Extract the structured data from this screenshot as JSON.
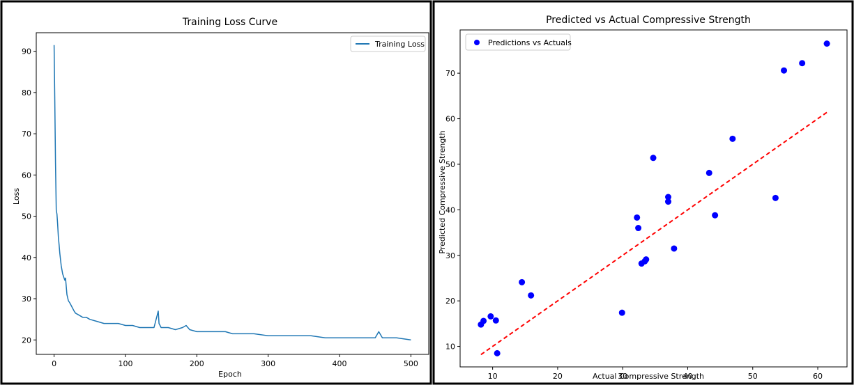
{
  "chart_data": [
    {
      "type": "line",
      "title": "Training Loss Curve",
      "xlabel": "Epoch",
      "ylabel": "Loss",
      "xlim": [
        -25,
        525
      ],
      "ylim": [
        16.5,
        94.5
      ],
      "xticks": [
        0,
        100,
        200,
        300,
        400,
        500
      ],
      "yticks": [
        20,
        30,
        40,
        50,
        60,
        70,
        80,
        90
      ],
      "legend": "top-right",
      "series": [
        {
          "name": "Training Loss",
          "color": "#1f77b4",
          "x": [
            0,
            1,
            2,
            3,
            4,
            5,
            6,
            7,
            8,
            9,
            10,
            12,
            14,
            15,
            16,
            18,
            20,
            22,
            25,
            28,
            30,
            35,
            40,
            45,
            50,
            60,
            70,
            80,
            90,
            100,
            110,
            120,
            130,
            140,
            146,
            147,
            150,
            160,
            170,
            180,
            185,
            190,
            200,
            220,
            240,
            250,
            260,
            280,
            300,
            320,
            340,
            360,
            380,
            400,
            420,
            440,
            450,
            455,
            460,
            480,
            500
          ],
          "y": [
            91.5,
            78,
            63,
            51.5,
            50.5,
            48,
            45,
            43,
            41,
            39.5,
            38,
            36,
            35,
            34.5,
            35,
            31,
            29.5,
            29,
            28,
            27,
            26.5,
            26,
            25.5,
            25.5,
            25,
            24.5,
            24,
            24,
            24,
            23.5,
            23.5,
            23,
            23,
            23,
            27,
            24,
            23,
            23,
            22.5,
            23,
            23.5,
            22.5,
            22,
            22,
            22,
            21.5,
            21.5,
            21.5,
            21,
            21,
            21,
            21,
            20.5,
            20.5,
            20.5,
            20.5,
            20.5,
            22,
            20.5,
            20.5,
            20
          ]
        }
      ]
    },
    {
      "type": "scatter",
      "title": "Predicted vs Actual Compressive Strength",
      "xlabel": "Actual Compressive Strength",
      "ylabel": "Predicted Compressive Strength",
      "xlim": [
        5,
        64.5
      ],
      "ylim": [
        5.5,
        79.5
      ],
      "xticks": [
        10,
        20,
        30,
        40,
        50,
        60
      ],
      "yticks": [
        10,
        20,
        30,
        40,
        50,
        60,
        70
      ],
      "legend": "top-left",
      "series": [
        {
          "name": "Predictions vs Actuals",
          "color": "#0000ff",
          "x": [
            8.2,
            8.6,
            9.7,
            10.5,
            10.7,
            14.5,
            15.9,
            29.9,
            32.2,
            32.4,
            32.9,
            33.4,
            33.6,
            34.7,
            37.0,
            37.0,
            37.9,
            43.3,
            44.2,
            46.9,
            53.5,
            54.8,
            57.6,
            61.4
          ],
          "y": [
            14.8,
            15.6,
            16.6,
            15.7,
            8.5,
            24.1,
            21.2,
            17.4,
            38.3,
            36.0,
            28.2,
            28.7,
            29.1,
            51.4,
            42.8,
            41.8,
            31.5,
            48.1,
            38.8,
            55.6,
            42.6,
            70.6,
            72.2,
            76.5
          ]
        }
      ],
      "reference_line": {
        "style": "dashed",
        "color": "#ff0000",
        "x": [
          8.2,
          61.4
        ],
        "y": [
          8.2,
          61.4
        ]
      }
    }
  ]
}
